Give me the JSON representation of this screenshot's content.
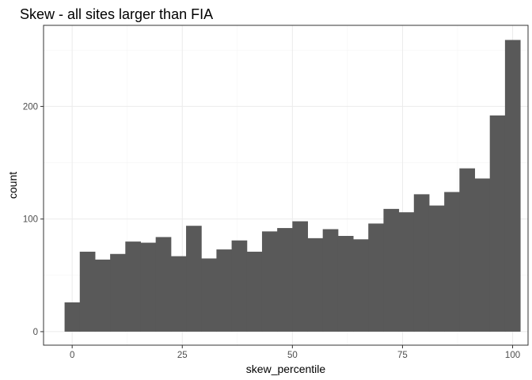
{
  "chart_data": {
    "type": "bar",
    "title": "Skew - all sites larger than FIA",
    "xlabel": "skew_percentile",
    "ylabel": "count",
    "xlim": [
      -6.5,
      103.5
    ],
    "ylim": [
      -12,
      272
    ],
    "x_ticks": [
      0,
      25,
      50,
      75,
      100
    ],
    "x_tick_labels": [
      "0",
      "25",
      "50",
      "75",
      "100"
    ],
    "y_ticks": [
      0,
      100,
      200
    ],
    "y_tick_labels": [
      "0",
      "100",
      "200"
    ],
    "grid": true,
    "bin_width": 3.448,
    "bins_start": -1.724,
    "values": [
      26,
      71,
      64,
      69,
      80,
      79,
      84,
      67,
      94,
      65,
      73,
      81,
      71,
      89,
      92,
      98,
      83,
      91,
      85,
      82,
      96,
      109,
      106,
      122,
      112,
      124,
      145,
      136,
      192,
      259
    ],
    "bar_color": "#595959"
  }
}
